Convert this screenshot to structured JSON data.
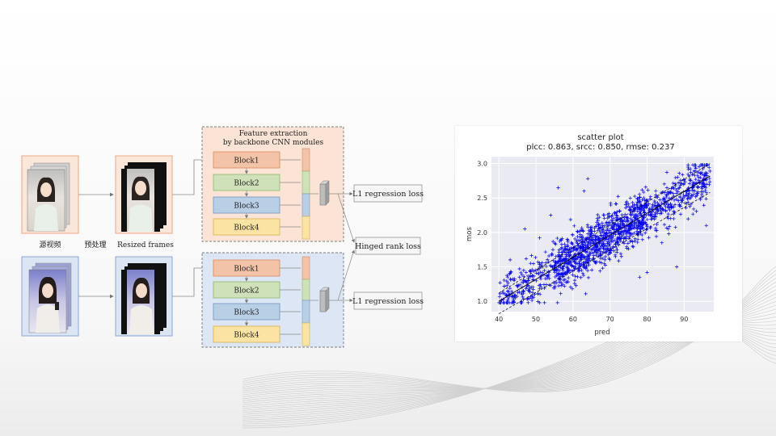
{
  "pipeline": {
    "source_label": "源视频",
    "preprocess_label": "预处理",
    "resized_label": "Resized frames",
    "feature_title_line1": "Feature extraction",
    "feature_title_line2": "by backbone CNN modules",
    "top_blocks": [
      "Block1",
      "Block2",
      "Block3",
      "Block4"
    ],
    "bottom_blocks": [
      "Block1",
      "Block2",
      "Block3",
      "Block4"
    ],
    "l1_loss_top": "L1 regression loss",
    "l1_loss_bottom": "L1 regression loss",
    "hinged_loss": "Hinged rank loss",
    "colors": {
      "block1": "#f3c3a8",
      "block2": "#cfe1b9",
      "block3": "#b9cfe6",
      "block4": "#fbe3a3",
      "top_panel": "#fbe4d6",
      "bottom_panel": "#dce6f4"
    }
  },
  "chart_data": {
    "type": "scatter",
    "title_line1": "scatter plot",
    "title_line2": "plcc: 0.863, srcc: 0.850, rmse: 0.237",
    "xlabel": "pred",
    "ylabel": "mos",
    "xlim": [
      38,
      98
    ],
    "ylim": [
      0.85,
      3.1
    ],
    "xticks": [
      40,
      50,
      60,
      70,
      80,
      90
    ],
    "yticks": [
      1.0,
      1.5,
      2.0,
      2.5,
      3.0
    ],
    "marker": "+",
    "marker_color": "#0000ff",
    "grid": true,
    "fit_line": {
      "x": [
        40,
        97
      ],
      "y": [
        1.0,
        2.82
      ]
    },
    "band_upper": {
      "x": [
        40,
        97
      ],
      "y": [
        1.12,
        3.0
      ]
    },
    "band_lower": {
      "x": [
        40,
        97
      ],
      "y": [
        0.82,
        2.58
      ]
    },
    "point_count": 1500,
    "outliers": [
      {
        "x": 47,
        "y": 2.05
      },
      {
        "x": 51,
        "y": 1.92
      },
      {
        "x": 54,
        "y": 2.25
      },
      {
        "x": 56,
        "y": 2.65
      },
      {
        "x": 63,
        "y": 2.6
      },
      {
        "x": 64,
        "y": 2.78
      },
      {
        "x": 78,
        "y": 1.35
      },
      {
        "x": 80,
        "y": 1.42
      },
      {
        "x": 84,
        "y": 1.85
      },
      {
        "x": 88,
        "y": 1.5
      },
      {
        "x": 96,
        "y": 2.1
      },
      {
        "x": 93,
        "y": 2.95
      }
    ]
  }
}
